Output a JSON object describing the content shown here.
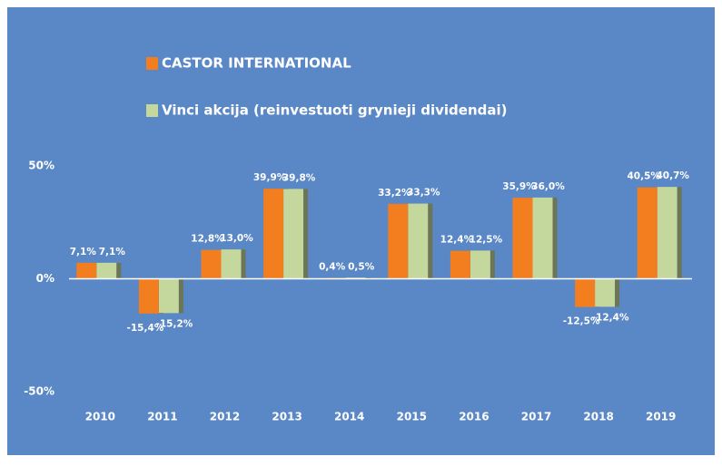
{
  "chart_data": {
    "type": "bar",
    "categories": [
      "2010",
      "2011",
      "2012",
      "2013",
      "2014",
      "2015",
      "2016",
      "2017",
      "2018",
      "2019"
    ],
    "series": [
      {
        "name": "CASTOR INTERNATIONAL",
        "color": "#f27e1f",
        "values": [
          7.1,
          -15.4,
          12.8,
          39.9,
          0.4,
          33.2,
          12.4,
          35.9,
          -12.5,
          40.5
        ],
        "value_labels": [
          "7,1%",
          "-15,4%",
          "12,8%",
          "39,9%",
          "0,4%",
          "33,2%",
          "12,4%",
          "35,9%",
          "-12,5%",
          "40,5%"
        ]
      },
      {
        "name": "Vinci akcija (reinvestuoti grynieji dividendai)",
        "color": "#c4d79d",
        "values": [
          7.1,
          -15.2,
          13.0,
          39.8,
          0.5,
          33.3,
          12.5,
          36.0,
          -12.4,
          40.7
        ],
        "value_labels": [
          "7,1%",
          "-15,2%",
          "13,0%",
          "39,8%",
          "0,5%",
          "33,3%",
          "12,5%",
          "36,0%",
          "-12,4%",
          "40,7%"
        ]
      }
    ],
    "ylim": [
      -50,
      50
    ],
    "yticks": [
      {
        "value": -50,
        "label": "-50%"
      },
      {
        "value": 0,
        "label": "0%"
      },
      {
        "value": 50,
        "label": "50%"
      }
    ]
  }
}
